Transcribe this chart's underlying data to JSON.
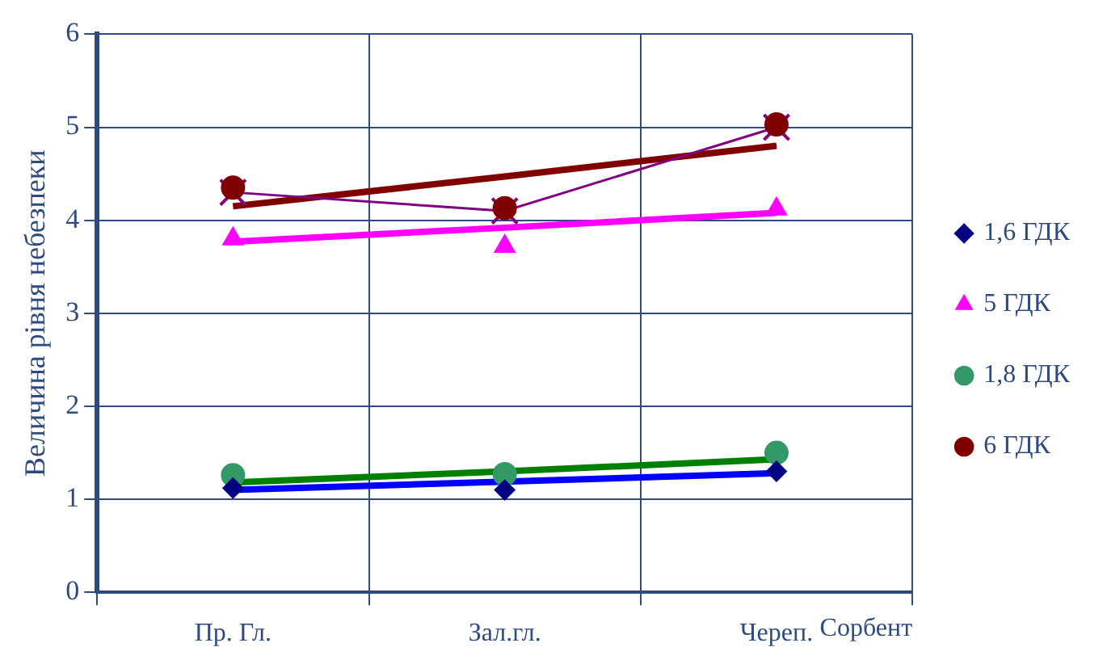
{
  "chart_data": {
    "type": "scatter",
    "xlabel": "Сорбент",
    "ylabel": "Величина рівня небезпеки",
    "categories": [
      "Пр. Гл.",
      "Зал.гл.",
      "Череп."
    ],
    "ylim": [
      0,
      6
    ],
    "yticks": [
      0,
      1,
      2,
      3,
      4,
      5,
      6
    ],
    "grid": true,
    "legend": "right",
    "series": [
      {
        "name": "1,6 ГДК",
        "marker": "diamond",
        "color": "#000080",
        "values": [
          1.12,
          1.1,
          1.3
        ]
      },
      {
        "name": "5 ГДК",
        "marker": "triangle",
        "color": "#ff00ff",
        "values": [
          3.8,
          3.72,
          4.12
        ]
      },
      {
        "name": "1,8 ГДК",
        "marker": "circle",
        "color": "#339966",
        "values": [
          1.26,
          1.27,
          1.5
        ]
      },
      {
        "name": "6 ГДК",
        "marker": "circle",
        "color": "#800000",
        "values": [
          4.35,
          4.13,
          5.03
        ]
      },
      {
        "type": "line",
        "marker": "cross",
        "color": "#800080",
        "values": [
          4.3,
          4.1,
          5.0
        ]
      },
      {
        "type": "line",
        "marker": "none",
        "color": "#0000ff",
        "values": [
          1.1,
          1.19,
          1.28
        ]
      },
      {
        "type": "line",
        "marker": "none",
        "color": "#ff00ff",
        "values": [
          3.77,
          3.92,
          4.08
        ]
      },
      {
        "type": "line",
        "marker": "none",
        "color": "#008000",
        "values": [
          1.18,
          1.3,
          1.43
        ]
      },
      {
        "type": "line",
        "marker": "none",
        "color": "#800000",
        "values": [
          4.15,
          4.47,
          4.8
        ]
      }
    ]
  }
}
